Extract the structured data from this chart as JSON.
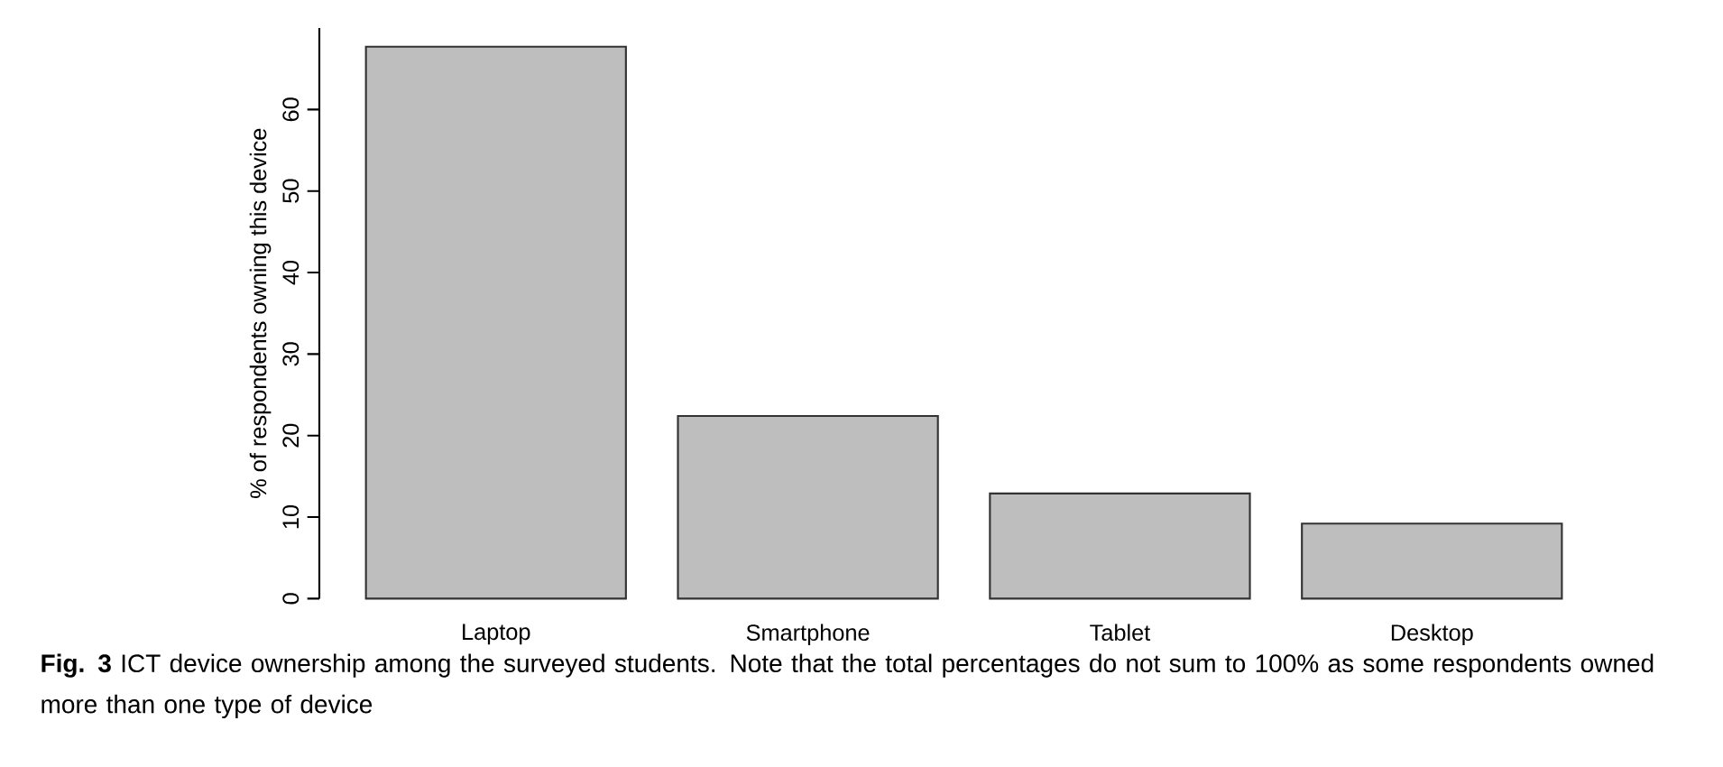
{
  "chart_data": {
    "type": "bar",
    "categories": [
      "Laptop",
      "Smartphone",
      "Tablet",
      "Desktop"
    ],
    "values": [
      67.7,
      22.4,
      12.9,
      9.2
    ],
    "color": "#bebebe",
    "ylabel": "% of respondents owning this device",
    "ylim": [
      0,
      70
    ],
    "yticks": [
      0,
      10,
      20,
      30,
      40,
      50,
      60
    ],
    "grid": false,
    "annotations": [
      "**Fig. 3** ICT device ownership among the surveyed students. Note that the total percentages do not sum to 100% as some respondents owned more than one type of device"
    ]
  }
}
